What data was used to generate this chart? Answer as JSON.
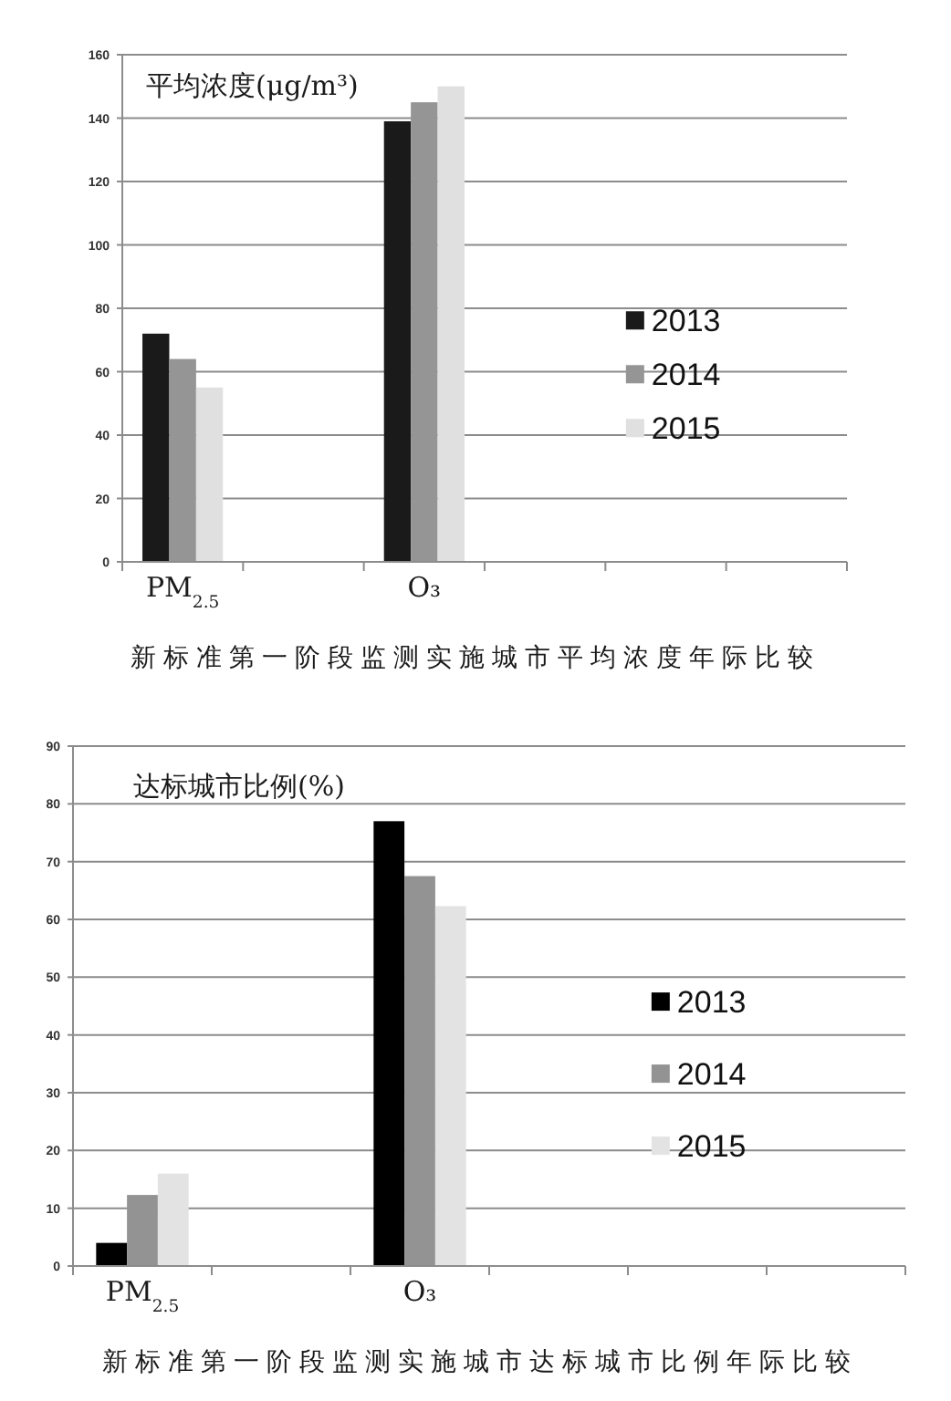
{
  "chart_data": [
    {
      "type": "bar",
      "title": "新标准第一阶段监测实施城市平均浓度年际比较",
      "ylabel": "平均浓度(μg/m³)",
      "categories": [
        "PM$_{2.5}$",
        null,
        "O₃",
        null,
        null,
        null
      ],
      "series": [
        {
          "name": "2013",
          "color": "#1a1a1a",
          "values": [
            72,
            null,
            139,
            null,
            null,
            null
          ]
        },
        {
          "name": "2014",
          "color": "#959595",
          "values": [
            64,
            null,
            145,
            null,
            null,
            null
          ]
        },
        {
          "name": "2015",
          "color": "#e0e0e0",
          "values": [
            55,
            null,
            150,
            null,
            null,
            null
          ]
        }
      ],
      "ylim": [
        0,
        160
      ],
      "yticks": [
        0,
        20,
        40,
        60,
        80,
        100,
        120,
        140,
        160
      ],
      "grid": "y",
      "legend": "right"
    },
    {
      "type": "bar",
      "title": "新标准第一阶段监测实施城市达标城市比例年际比较",
      "ylabel": "达标城市比例(%)",
      "categories": [
        "PM$_{2.5}$",
        null,
        "O₃",
        null,
        null,
        null
      ],
      "series": [
        {
          "name": "2013",
          "color": "#000000",
          "values": [
            4,
            null,
            77,
            null,
            null,
            null
          ]
        },
        {
          "name": "2014",
          "color": "#939393",
          "values": [
            12.3,
            null,
            67.5,
            null,
            null,
            null
          ]
        },
        {
          "name": "2015",
          "color": "#e3e3e3",
          "values": [
            16,
            null,
            62.3,
            null,
            null,
            null
          ]
        }
      ],
      "ylim": [
        0,
        90
      ],
      "yticks": [
        0,
        10,
        20,
        30,
        40,
        50,
        60,
        70,
        80,
        90
      ],
      "grid": "y",
      "legend": "right"
    }
  ]
}
